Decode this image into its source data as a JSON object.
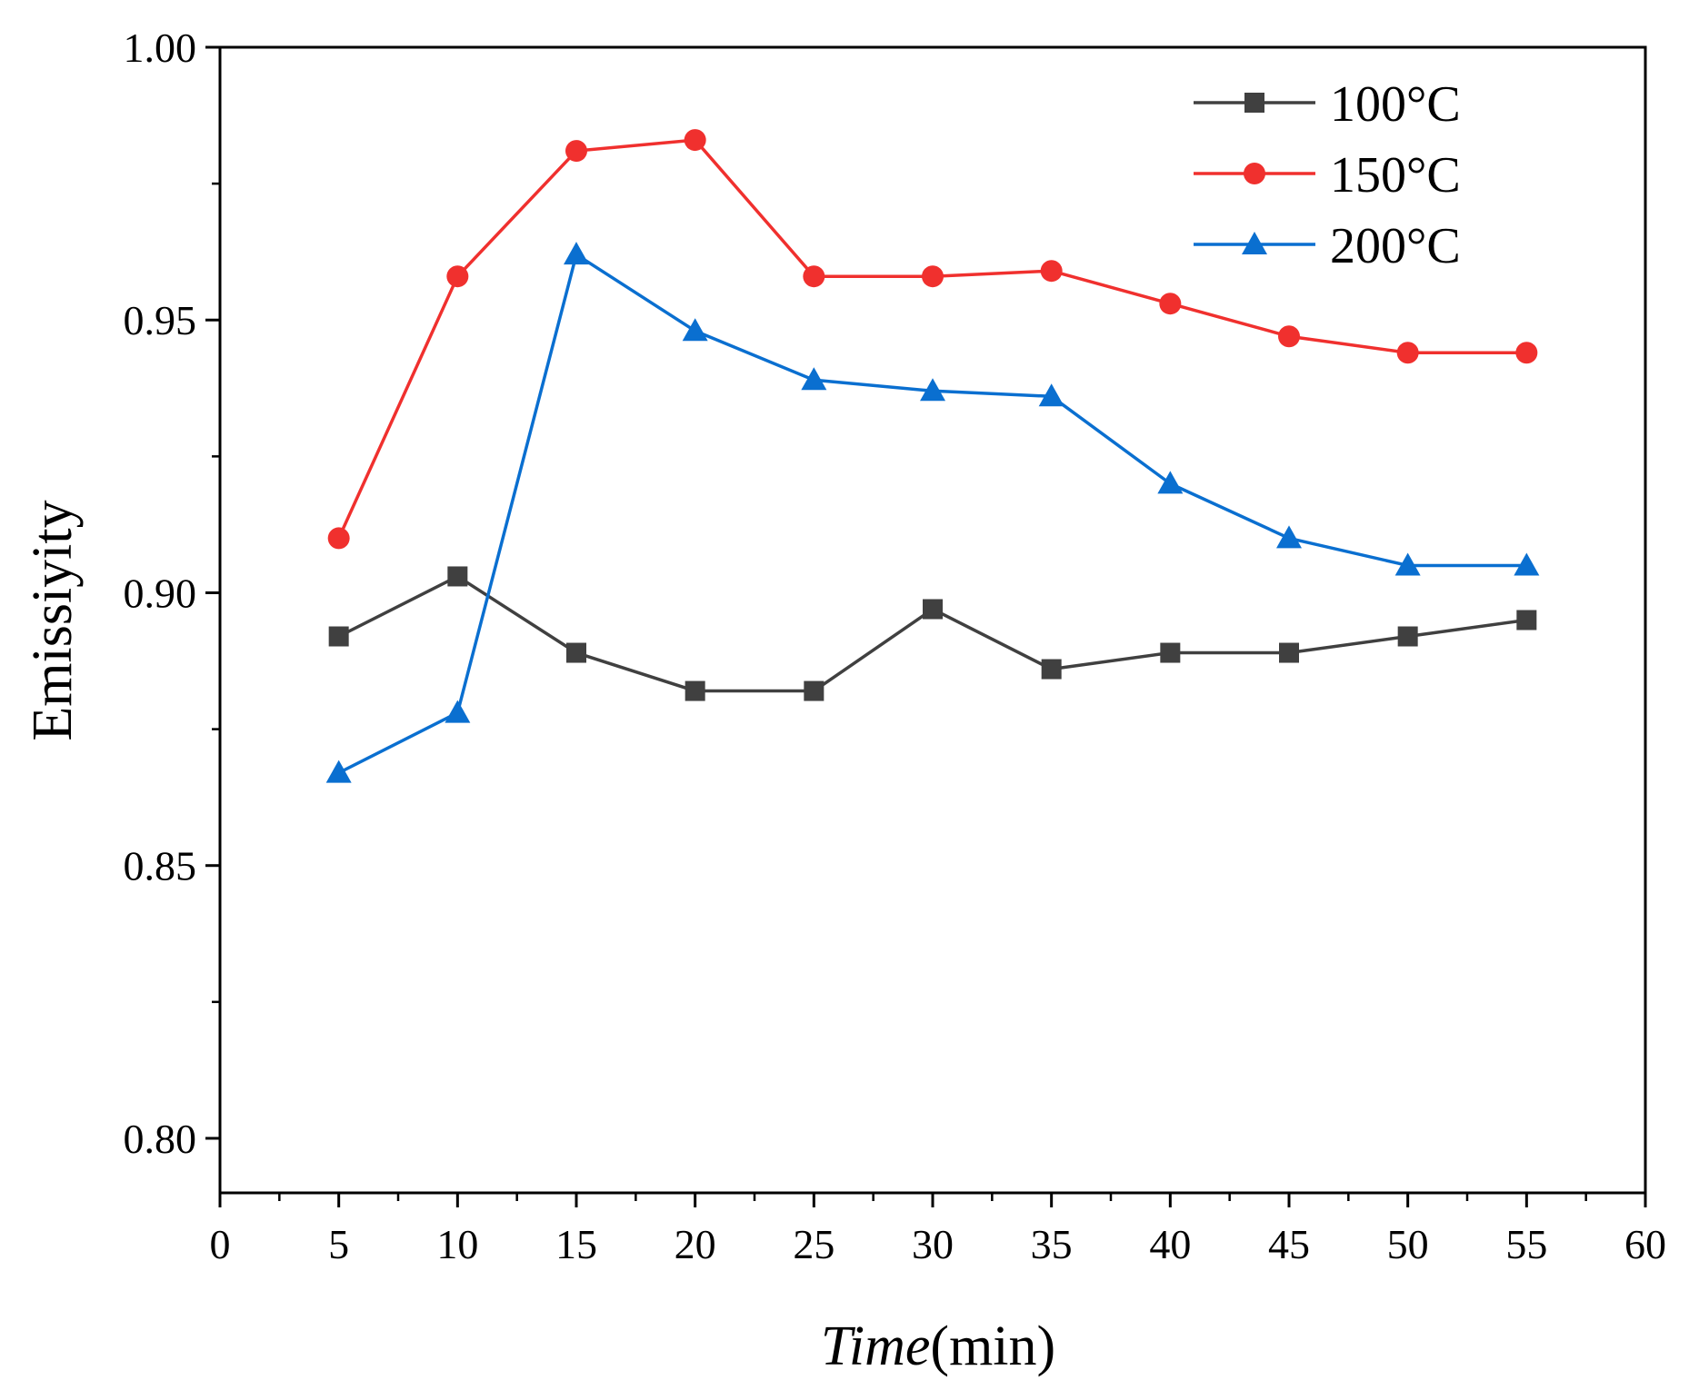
{
  "chart_data": {
    "type": "line",
    "title": "",
    "xlabel_italic": "Time",
    "xlabel_unit": "(min)",
    "ylabel": "Emissiyity",
    "xlim": [
      0,
      60
    ],
    "ylim": [
      0.79,
      1.0
    ],
    "x_ticks": [
      0,
      5,
      10,
      15,
      20,
      25,
      30,
      35,
      40,
      45,
      50,
      55,
      60
    ],
    "x_minor_ticks": [
      2.5,
      7.5,
      12.5,
      17.5,
      22.5,
      27.5,
      32.5,
      37.5,
      42.5,
      47.5,
      52.5,
      57.5
    ],
    "y_ticks": [
      0.8,
      0.85,
      0.9,
      0.95,
      1.0
    ],
    "y_tick_labels": [
      "0.80",
      "0.85",
      "0.90",
      "0.95",
      "1.00"
    ],
    "y_minor_ticks": [
      0.825,
      0.875,
      0.925,
      0.975
    ],
    "grid": false,
    "legend_position": "top-right",
    "x": [
      5,
      10,
      15,
      20,
      25,
      30,
      35,
      40,
      45,
      50,
      55
    ],
    "series": [
      {
        "name": "100°C",
        "color": "#404040",
        "marker": "square",
        "values": [
          0.892,
          0.903,
          0.889,
          0.882,
          0.882,
          0.897,
          0.886,
          0.889,
          0.889,
          0.892,
          0.895
        ]
      },
      {
        "name": "150°C",
        "color": "#f0302e",
        "marker": "circle",
        "values": [
          0.91,
          0.958,
          0.981,
          0.983,
          0.958,
          0.958,
          0.959,
          0.953,
          0.947,
          0.944,
          0.944
        ]
      },
      {
        "name": "200°C",
        "color": "#0a6fd0",
        "marker": "triangle",
        "values": [
          0.867,
          0.878,
          0.962,
          0.948,
          0.939,
          0.937,
          0.936,
          0.92,
          0.91,
          0.905,
          0.905
        ]
      }
    ]
  }
}
